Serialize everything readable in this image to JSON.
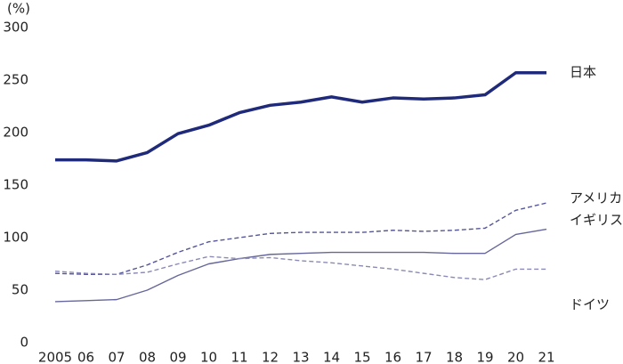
{
  "chart_data": {
    "type": "line",
    "y_label": "(%)",
    "categories": [
      "2005",
      "06",
      "07",
      "08",
      "09",
      "10",
      "11",
      "12",
      "13",
      "14",
      "15",
      "16",
      "17",
      "18",
      "19",
      "20",
      "21"
    ],
    "series": [
      {
        "name": "日本",
        "color": "#1f2a7a",
        "values": [
          174,
          174,
          173,
          181,
          199,
          207,
          219,
          226,
          229,
          234,
          229,
          233,
          232,
          233,
          236,
          257,
          257
        ]
      },
      {
        "name": "アメリカ",
        "color": "#55559a",
        "dashed": true,
        "values": [
          66,
          65,
          65,
          74,
          86,
          96,
          100,
          104,
          105,
          105,
          105,
          107,
          106,
          107,
          109,
          126,
          133
        ]
      },
      {
        "name": "イギリス",
        "color": "#66669a",
        "values": [
          39,
          40,
          41,
          50,
          64,
          75,
          80,
          84,
          85,
          86,
          86,
          86,
          86,
          85,
          85,
          103,
          108
        ]
      },
      {
        "name": "ドイツ",
        "color": "#8a8ab4",
        "dashed": true,
        "values": [
          68,
          66,
          65,
          67,
          75,
          82,
          80,
          81,
          78,
          76,
          73,
          70,
          66,
          62,
          60,
          70,
          70
        ]
      }
    ],
    "ylim": [
      0,
      300
    ],
    "yticks": [
      0,
      50,
      100,
      150,
      200,
      250,
      300
    ],
    "grid": false
  }
}
